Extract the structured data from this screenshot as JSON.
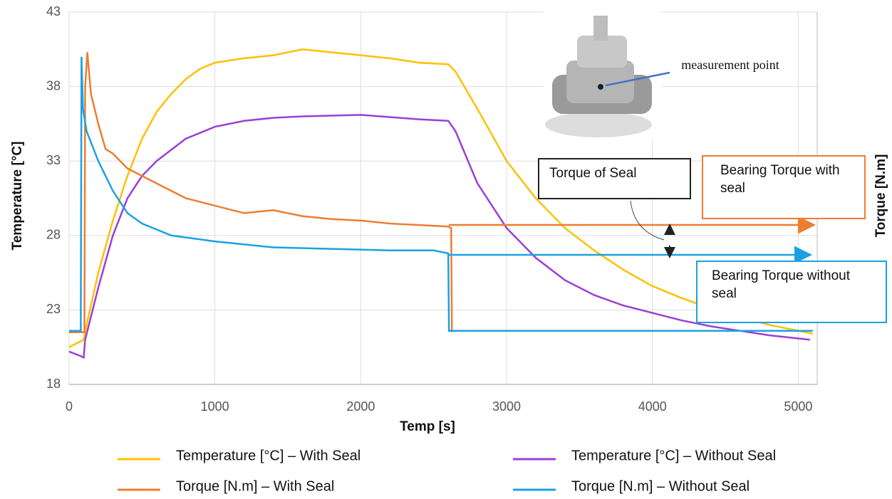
{
  "chart_data": {
    "type": "line",
    "xlabel": "Temp [s]",
    "ylabel": "Temperature [°C]",
    "y2label": "Torque [N.m]",
    "xlim": [
      0,
      5130
    ],
    "ylim": [
      18,
      43
    ],
    "xticks": [
      0,
      1000,
      2000,
      3000,
      4000,
      5000
    ],
    "yticks": [
      18,
      23,
      28,
      33,
      38,
      43
    ],
    "grid": true,
    "series": [
      {
        "name": "Temperature [°C] – With Seal",
        "color": "#ffc000",
        "x": [
          0,
          100,
          120,
          200,
          300,
          400,
          500,
          600,
          700,
          800,
          900,
          1000,
          1200,
          1400,
          1600,
          1800,
          2000,
          2200,
          2400,
          2600,
          2650,
          2800,
          3000,
          3200,
          3400,
          3600,
          3800,
          4000,
          4200,
          4400,
          4600,
          4800,
          5000,
          5100
        ],
        "values": [
          20.5,
          21,
          22,
          25.5,
          29,
          32,
          34.5,
          36.3,
          37.5,
          38.5,
          39.2,
          39.6,
          39.9,
          40.1,
          40.5,
          40.3,
          40.1,
          39.9,
          39.6,
          39.5,
          39,
          36.5,
          33,
          30.5,
          28.5,
          27,
          25.7,
          24.6,
          23.8,
          23.1,
          22.5,
          22,
          21.6,
          21.4
        ]
      },
      {
        "name": "Temperature [°C] – Without Seal",
        "color": "#9b3fd6",
        "x": [
          0,
          80,
          100,
          110,
          200,
          300,
          400,
          500,
          600,
          800,
          1000,
          1200,
          1400,
          1600,
          2000,
          2400,
          2600,
          2650,
          2800,
          3000,
          3200,
          3400,
          3600,
          3800,
          4000,
          4200,
          4400,
          4600,
          4800,
          5080
        ],
        "values": [
          20.2,
          19.9,
          19.8,
          21,
          24.5,
          28,
          30.5,
          32,
          33,
          34.5,
          35.3,
          35.7,
          35.9,
          36,
          36.1,
          35.8,
          35.7,
          35,
          31.5,
          28.5,
          26.5,
          25,
          24,
          23.3,
          22.8,
          22.3,
          21.9,
          21.6,
          21.3,
          21
        ]
      },
      {
        "name": "Torque [N.m] – With Seal",
        "color": "#ed7d31",
        "x": [
          0,
          105,
          110,
          125,
          150,
          200,
          250,
          300,
          400,
          500,
          600,
          700,
          800,
          1000,
          1200,
          1400,
          1600,
          1800,
          2000,
          2200,
          2400,
          2600,
          2620,
          2625
        ],
        "values": [
          21.5,
          21.5,
          38,
          40.3,
          37.5,
          35.5,
          33.8,
          33.5,
          32.5,
          32,
          31.5,
          31,
          30.5,
          30,
          29.5,
          29.7,
          29.3,
          29.1,
          29,
          28.8,
          28.7,
          28.6,
          28.5,
          21.5
        ]
      },
      {
        "name": "Torque [N.m] – Without Seal",
        "color": "#1ba1e2",
        "x": [
          0,
          80,
          85,
          95,
          120,
          200,
          300,
          400,
          500,
          700,
          1000,
          1400,
          1800,
          2200,
          2500,
          2600,
          2605,
          5100
        ],
        "values": [
          21.6,
          21.6,
          40,
          36.5,
          35,
          33,
          31,
          29.5,
          28.8,
          28,
          27.6,
          27.2,
          27.1,
          27,
          27,
          26.8,
          21.6,
          21.6
        ]
      }
    ],
    "annotations": {
      "measurement": "measurement point",
      "seal": "Torque of Seal",
      "with": "Bearing Torque with seal",
      "without": "Bearing Torque without seal"
    }
  }
}
